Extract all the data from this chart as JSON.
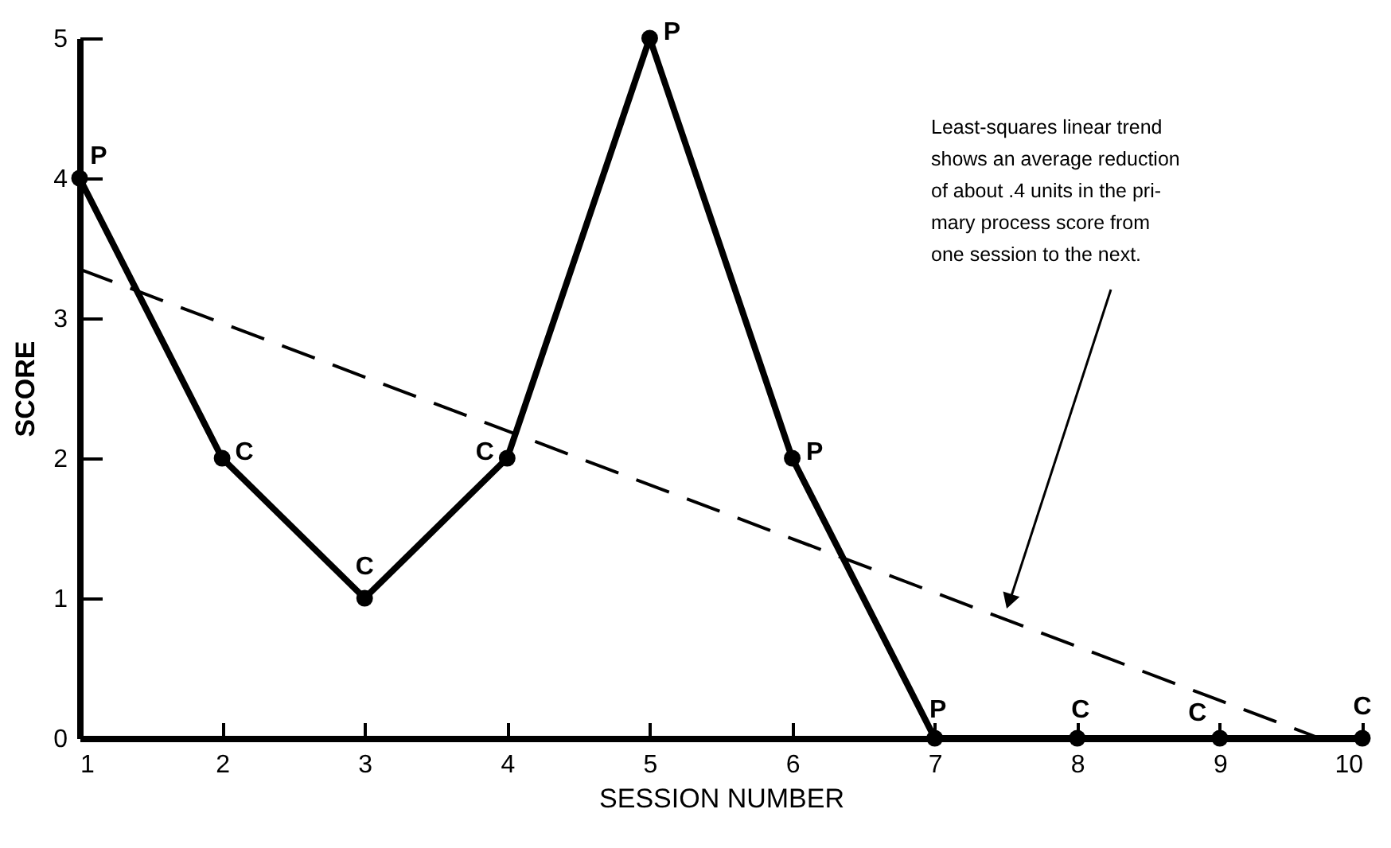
{
  "chart_data": {
    "type": "line",
    "xlabel": "SESSION NUMBER",
    "ylabel": "SCORE",
    "x": [
      1,
      2,
      3,
      4,
      5,
      6,
      7,
      8,
      9,
      10
    ],
    "series": [
      {
        "color": "#000000",
        "values": [
          4,
          2,
          1,
          2,
          5,
          2,
          0,
          0,
          0,
          0
        ]
      },
      {
        "type": "line",
        "color": "#000000",
        "line_style": "dashed",
        "marker": "none",
        "x": [
          1,
          9.7
        ],
        "values": [
          3.35,
          0
        ]
      }
    ],
    "xlim": [
      1,
      10
    ],
    "xticks": [
      1,
      2,
      3,
      4,
      5,
      6,
      7,
      8,
      9,
      10
    ],
    "ylim": [
      0,
      5
    ],
    "yticks": [
      0,
      1,
      2,
      3,
      4,
      5
    ],
    "marker": "circle",
    "grid": false,
    "annotations": [
      "Least-squares linear trend\nshows an average reduction\nof about .4 units in the pri-\nmary process score from\none session to the next.",
      {
        "text": "P",
        "x": 1,
        "y": 4
      },
      {
        "text": "C",
        "x": 2,
        "y": 2
      },
      {
        "text": "C",
        "x": 3,
        "y": 1
      },
      {
        "text": "C",
        "x": 4,
        "y": 2
      },
      {
        "text": "P",
        "x": 5,
        "y": 5
      },
      {
        "text": "P",
        "x": 6,
        "y": 2
      },
      {
        "text": "P",
        "x": 7,
        "y": 0
      },
      {
        "text": "C",
        "x": 8,
        "y": 0
      },
      {
        "text": "C",
        "x": 9,
        "y": 0
      },
      {
        "text": "C",
        "x": 10,
        "y": 0
      }
    ]
  }
}
